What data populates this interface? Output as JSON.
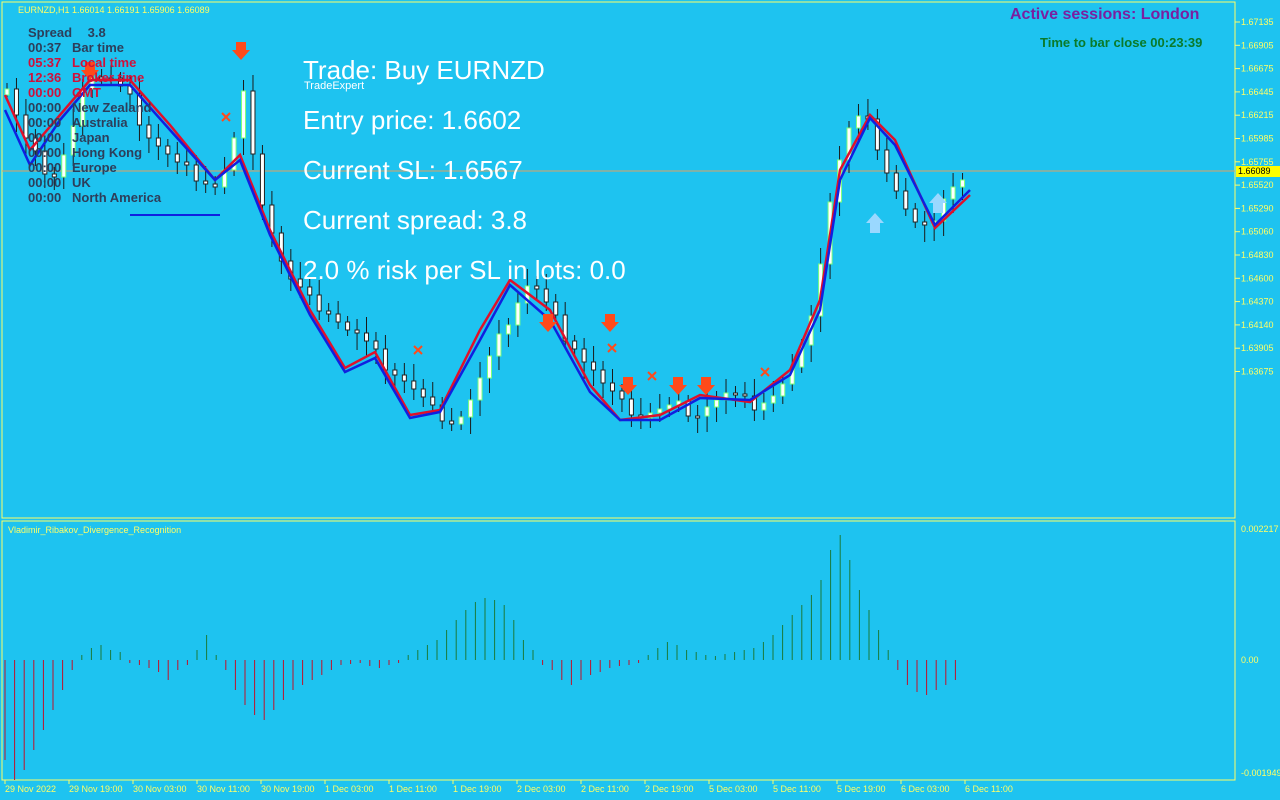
{
  "header": {
    "symbol_info": "EURNZD,H1  1.66014 1.66191 1.65906 1.66089",
    "active_sessions": "Active sessions:  London",
    "time_to_close": "Time to bar close 00:23:39"
  },
  "info_table": {
    "spread_label": "Spread",
    "spread_value": "3.8",
    "rows": [
      {
        "time": "00:37",
        "label": "Bar time"
      },
      {
        "time": "05:37",
        "label": "Local time"
      },
      {
        "time": "12:36",
        "label": "Broker time"
      },
      {
        "time": "00:00",
        "label": "GMT"
      },
      {
        "time": "00:00",
        "label": "New Zealand"
      },
      {
        "time": "00:00",
        "label": "Australia"
      },
      {
        "time": "00:00",
        "label": "Japan"
      },
      {
        "time": "00:00",
        "label": "Hong Kong"
      },
      {
        "time": "00:00",
        "label": "Europe"
      },
      {
        "time": "00:00",
        "label": "UK"
      },
      {
        "time": "00:00",
        "label": "North America"
      }
    ]
  },
  "trade_panel": {
    "title": "Trade: Buy EURNZD",
    "brand": "TradeExpert",
    "entry": "Entry price: 1.6602",
    "sl": "Current SL: 1.6567",
    "spread": "Current spread: 3.8",
    "risk": "2.0 % risk per SL in lots: 0.0"
  },
  "price_axis": [
    "1.67135",
    "1.66905",
    "1.66675",
    "1.66445",
    "1.66215",
    "1.65985",
    "1.65755",
    "1.65520",
    "1.65290",
    "1.65060",
    "1.64830",
    "1.64600",
    "1.64370",
    "1.64140",
    "1.63905",
    "1.63675"
  ],
  "current_price": "1.66089",
  "indicator": {
    "name": "Vladimir_Ribakov_Divergence_Recognition",
    "axis": [
      "0.002217",
      "0.00",
      "-0.001949"
    ]
  },
  "time_axis": [
    "29 Nov 2022",
    "29 Nov 19:00",
    "30 Nov 03:00",
    "30 Nov 11:00",
    "30 Nov 19:00",
    "1 Dec 03:00",
    "1 Dec 11:00",
    "1 Dec 19:00",
    "2 Dec 03:00",
    "2 Dec 11:00",
    "2 Dec 19:00",
    "5 Dec 03:00",
    "5 Dec 11:00",
    "5 Dec 19:00",
    "6 Dec 03:00",
    "6 Dec 11:00"
  ],
  "colors": {
    "background": "#1ec3f0",
    "axis": "#ffff66",
    "bull_candle": "#ffffff",
    "bear_candle": "#ffffff",
    "ma_red": "#e0102a",
    "ma_blue": "#1020e0",
    "arrow_down": "#ff4a1a",
    "arrow_up": "#9ad8ff",
    "histogram_pos": "#1a7a3a",
    "histogram_neg": "#c0102a"
  }
}
